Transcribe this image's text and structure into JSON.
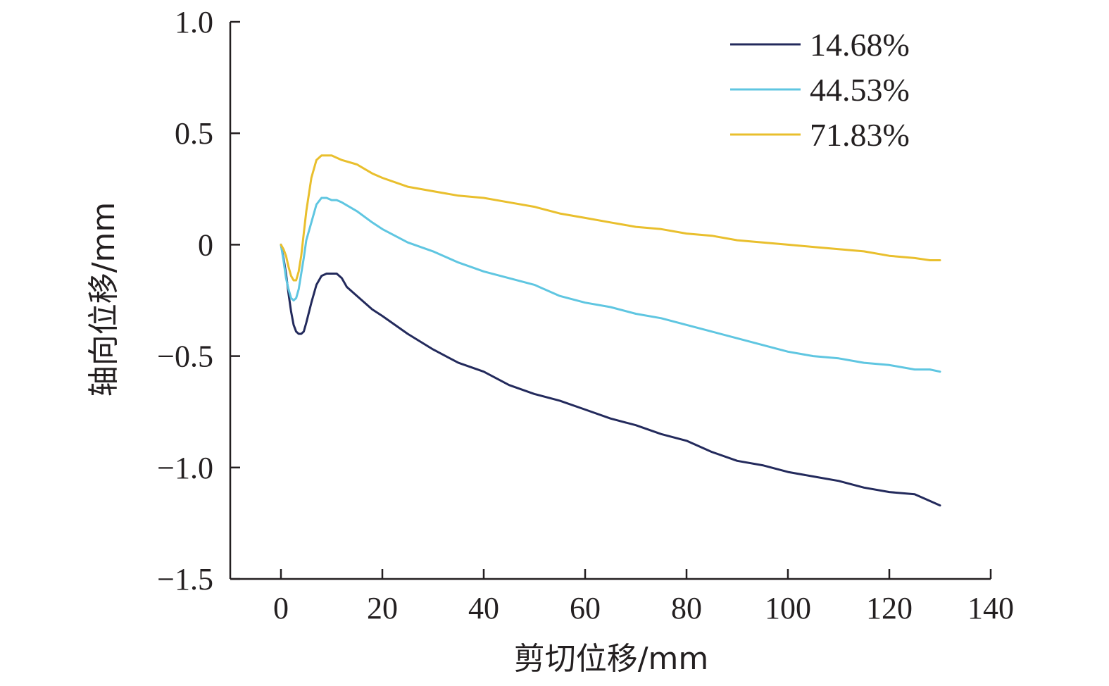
{
  "chart_data": {
    "type": "line",
    "xlabel": "剪切位移/mm",
    "ylabel": "轴向位移/mm",
    "xlim": [
      -10,
      140
    ],
    "ylim": [
      -1.5,
      1.0
    ],
    "xticks": [
      0,
      20,
      40,
      60,
      80,
      100,
      120,
      140
    ],
    "yticks": [
      1.0,
      0.5,
      0,
      -0.5,
      -1.0,
      -1.5
    ],
    "xtick_labels": [
      "0",
      "20",
      "40",
      "60",
      "80",
      "100",
      "120",
      "140"
    ],
    "ytick_labels": [
      "1.0",
      "0.5",
      "0",
      "−0.5",
      "−1.0",
      "−1.5"
    ],
    "grid": false,
    "legend_position": "top-right",
    "series": [
      {
        "name": "14.68%",
        "color": "#232a5c",
        "x": [
          0,
          0.5,
          1,
          1.5,
          2,
          2.5,
          3,
          3.5,
          4,
          4.5,
          5,
          6,
          7,
          8,
          9,
          10,
          11,
          12,
          13,
          15,
          18,
          20,
          25,
          30,
          35,
          40,
          45,
          50,
          55,
          60,
          65,
          70,
          75,
          80,
          85,
          90,
          95,
          100,
          105,
          110,
          115,
          120,
          125,
          128,
          130
        ],
        "y": [
          0,
          -0.06,
          -0.13,
          -0.22,
          -0.3,
          -0.36,
          -0.39,
          -0.4,
          -0.4,
          -0.39,
          -0.35,
          -0.26,
          -0.18,
          -0.14,
          -0.13,
          -0.13,
          -0.13,
          -0.15,
          -0.19,
          -0.23,
          -0.29,
          -0.32,
          -0.4,
          -0.47,
          -0.53,
          -0.57,
          -0.63,
          -0.67,
          -0.7,
          -0.74,
          -0.78,
          -0.81,
          -0.85,
          -0.88,
          -0.93,
          -0.97,
          -0.99,
          -1.02,
          -1.04,
          -1.06,
          -1.09,
          -1.11,
          -1.12,
          -1.15,
          -1.17
        ]
      },
      {
        "name": "44.53%",
        "color": "#5fc6e1",
        "x": [
          0,
          0.5,
          1,
          1.5,
          2,
          2.5,
          3,
          3.5,
          4,
          4.5,
          5,
          6,
          7,
          8,
          9,
          10,
          11,
          12,
          15,
          18,
          20,
          25,
          30,
          35,
          40,
          45,
          50,
          55,
          60,
          65,
          70,
          75,
          80,
          85,
          90,
          95,
          100,
          105,
          110,
          115,
          120,
          125,
          128,
          130
        ],
        "y": [
          0,
          -0.07,
          -0.15,
          -0.2,
          -0.24,
          -0.25,
          -0.24,
          -0.2,
          -0.13,
          -0.06,
          0.02,
          0.1,
          0.18,
          0.21,
          0.21,
          0.2,
          0.2,
          0.19,
          0.15,
          0.1,
          0.07,
          0.01,
          -0.03,
          -0.08,
          -0.12,
          -0.15,
          -0.18,
          -0.23,
          -0.26,
          -0.28,
          -0.31,
          -0.33,
          -0.36,
          -0.39,
          -0.42,
          -0.45,
          -0.48,
          -0.5,
          -0.51,
          -0.53,
          -0.54,
          -0.56,
          -0.56,
          -0.57
        ]
      },
      {
        "name": "71.83%",
        "color": "#e9bf2d",
        "x": [
          0,
          0.5,
          1,
          1.5,
          2,
          2.5,
          3,
          3.5,
          4,
          4.5,
          5,
          6,
          7,
          8,
          9,
          10,
          11,
          12,
          15,
          18,
          20,
          25,
          30,
          35,
          40,
          45,
          50,
          55,
          60,
          65,
          70,
          75,
          80,
          85,
          90,
          95,
          100,
          105,
          110,
          115,
          120,
          125,
          128,
          130
        ],
        "y": [
          0,
          -0.02,
          -0.05,
          -0.1,
          -0.14,
          -0.16,
          -0.16,
          -0.12,
          -0.05,
          0.05,
          0.15,
          0.3,
          0.38,
          0.4,
          0.4,
          0.4,
          0.39,
          0.38,
          0.36,
          0.32,
          0.3,
          0.26,
          0.24,
          0.22,
          0.21,
          0.19,
          0.17,
          0.14,
          0.12,
          0.1,
          0.08,
          0.07,
          0.05,
          0.04,
          0.02,
          0.01,
          0.0,
          -0.01,
          -0.02,
          -0.03,
          -0.05,
          -0.06,
          -0.07,
          -0.07
        ]
      }
    ]
  }
}
